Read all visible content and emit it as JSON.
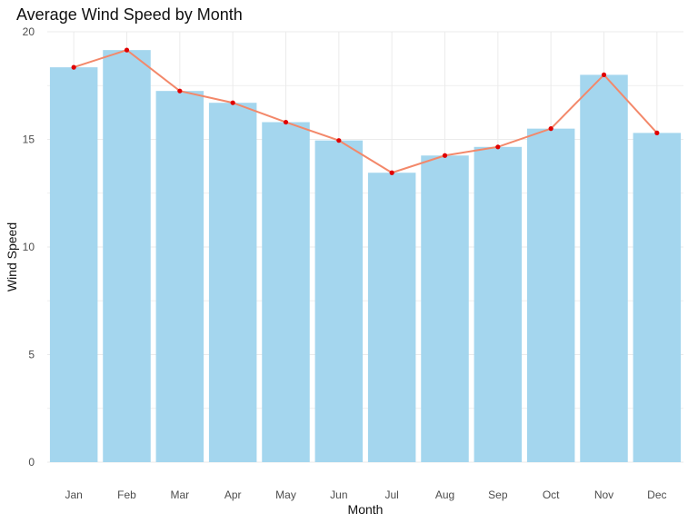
{
  "chart_data": {
    "type": "bar",
    "title": "Average Wind Speed by Month",
    "xlabel": "Month",
    "ylabel": "Wind Speed",
    "categories": [
      "Jan",
      "Feb",
      "Mar",
      "Apr",
      "May",
      "Jun",
      "Jul",
      "Aug",
      "Sep",
      "Oct",
      "Nov",
      "Dec"
    ],
    "values": [
      18.35,
      19.15,
      17.25,
      16.7,
      15.8,
      14.95,
      13.45,
      14.25,
      14.65,
      15.5,
      18.0,
      15.3
    ],
    "yticks": [
      0,
      5,
      10,
      15,
      20
    ],
    "ylim": [
      0,
      20
    ],
    "grid": true,
    "colors": {
      "bar": "#a4d6ee",
      "line": "#f3886a",
      "point": "#e00000",
      "grid": "#ebebeb"
    }
  }
}
